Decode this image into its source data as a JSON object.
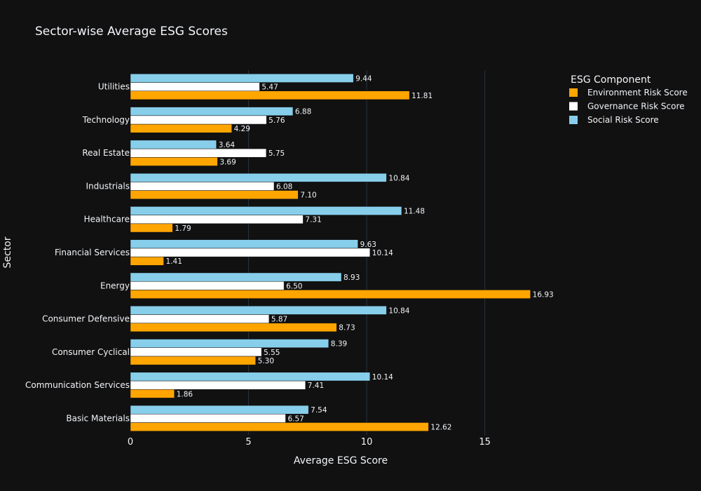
{
  "chart_data": {
    "type": "bar",
    "orientation": "horizontal",
    "title": "Sector-wise Average ESG Scores",
    "xlabel": "Average ESG Score",
    "ylabel": "Sector",
    "xlim": [
      0,
      17.8
    ],
    "x_ticks": [
      0,
      5,
      10,
      15
    ],
    "grid": true,
    "legend_title": "ESG Component",
    "legend_position": "top-right",
    "categories": [
      "Basic Materials",
      "Communication Services",
      "Consumer Cyclical",
      "Consumer Defensive",
      "Energy",
      "Financial Services",
      "Healthcare",
      "Industrials",
      "Real Estate",
      "Technology",
      "Utilities"
    ],
    "series": [
      {
        "name": "Environment Risk Score",
        "color": "#FFA500",
        "values": [
          12.62,
          1.86,
          5.3,
          8.73,
          16.93,
          1.41,
          1.79,
          7.1,
          3.69,
          4.29,
          11.81
        ]
      },
      {
        "name": "Governance Risk Score",
        "color": "#FFFFFF",
        "values": [
          6.57,
          7.41,
          5.55,
          5.87,
          6.5,
          10.14,
          7.31,
          6.08,
          5.75,
          5.76,
          5.47
        ]
      },
      {
        "name": "Social Risk Score",
        "color": "#87CEEB",
        "values": [
          7.54,
          10.14,
          8.39,
          10.84,
          8.93,
          9.63,
          11.48,
          10.84,
          3.64,
          6.88,
          9.44
        ]
      }
    ]
  }
}
